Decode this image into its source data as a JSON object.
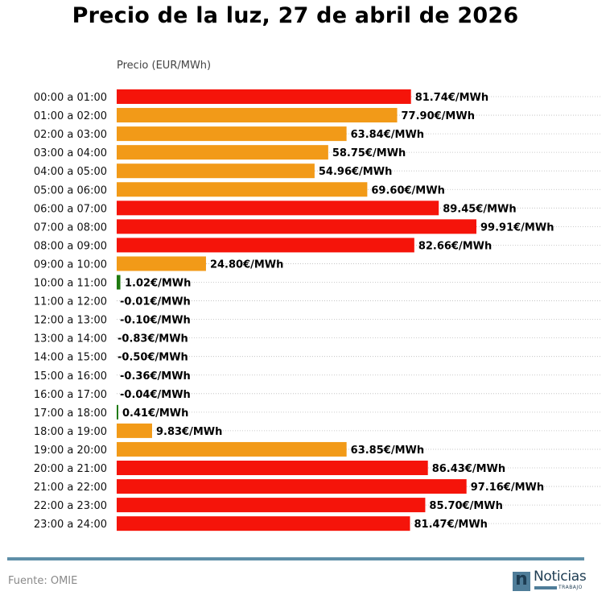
{
  "header": {
    "title": "Precio de la luz, 27 de abril de 2026",
    "axis_label": "Precio (EUR/MWh)"
  },
  "footer": {
    "source": "Fuente: OMIE",
    "logo_letter": "n",
    "logo_word": "Noticias",
    "logo_sub": "TRABAJO"
  },
  "colors": {
    "high": "#f5140a",
    "mid": "#f29a18",
    "low": "#1f7a10",
    "gridline": "#bbbbbb",
    "rule": "#5e8fa8"
  },
  "chart_data": {
    "type": "bar",
    "orientation": "horizontal",
    "title": "Precio de la luz, 27 de abril de 2026",
    "xlabel": "Precio (EUR/MWh)",
    "ylabel": "",
    "unit_suffix": "€/MWh",
    "xlim": [
      0,
      100
    ],
    "grid": "dotted horizontal per row",
    "categories": [
      "00:00 a 01:00",
      "01:00 a 02:00",
      "02:00 a 03:00",
      "03:00 a 04:00",
      "04:00 a 05:00",
      "05:00 a 06:00",
      "06:00 a 07:00",
      "07:00 a 08:00",
      "08:00 a 09:00",
      "09:00 a 10:00",
      "10:00 a 11:00",
      "11:00 a 12:00",
      "12:00 a 13:00",
      "13:00 a 14:00",
      "14:00 a 15:00",
      "15:00 a 16:00",
      "16:00 a 17:00",
      "17:00 a 18:00",
      "18:00 a 19:00",
      "19:00 a 20:00",
      "20:00 a 21:00",
      "21:00 a 22:00",
      "22:00 a 23:00",
      "23:00 a 24:00"
    ],
    "values": [
      81.74,
      77.9,
      63.84,
      58.75,
      54.96,
      69.6,
      89.45,
      99.91,
      82.66,
      24.8,
      1.02,
      -0.01,
      -0.1,
      -0.83,
      -0.5,
      -0.36,
      -0.04,
      0.41,
      9.83,
      63.85,
      86.43,
      97.16,
      85.7,
      81.47
    ],
    "labels": [
      "81.74€/MWh",
      "77.90€/MWh",
      "63.84€/MWh",
      "58.75€/MWh",
      "54.96€/MWh",
      "69.60€/MWh",
      "89.45€/MWh",
      "99.91€/MWh",
      "82.66€/MWh",
      "24.80€/MWh",
      "1.02€/MWh",
      "-0.01€/MWh",
      "-0.10€/MWh",
      "-0.83€/MWh",
      "-0.50€/MWh",
      "-0.36€/MWh",
      "-0.04€/MWh",
      "0.41€/MWh",
      "9.83€/MWh",
      "63.85€/MWh",
      "86.43€/MWh",
      "97.16€/MWh",
      "85.70€/MWh",
      "81.47€/MWh"
    ],
    "levels": [
      "high",
      "mid",
      "mid",
      "mid",
      "mid",
      "mid",
      "high",
      "high",
      "high",
      "mid",
      "low",
      "low",
      "low",
      "low",
      "low",
      "low",
      "low",
      "low",
      "mid",
      "mid",
      "high",
      "high",
      "high",
      "high"
    ]
  }
}
